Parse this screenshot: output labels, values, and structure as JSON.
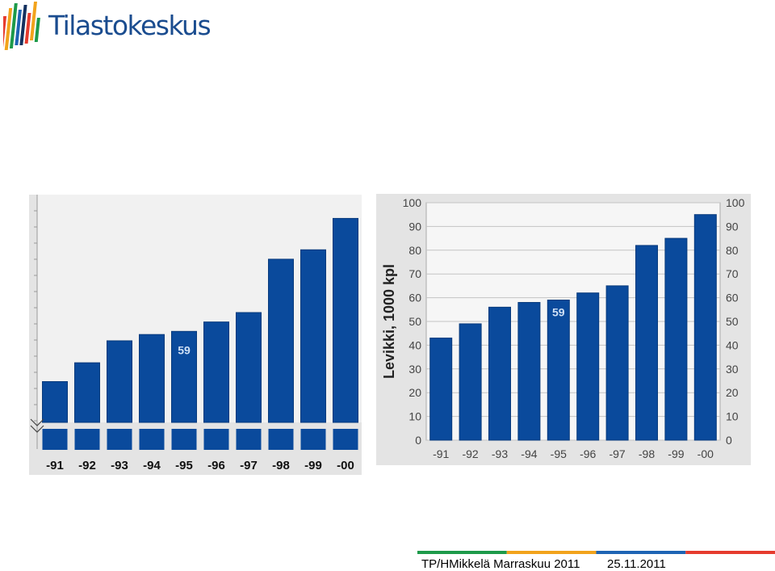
{
  "header": {
    "logo_text": "Tilastokeskus",
    "logo_colors": [
      "#e63b2e",
      "#f2a31c",
      "#1d9a4a",
      "#1e64b4",
      "#14315f"
    ]
  },
  "chart_data": [
    {
      "type": "bar",
      "categories": [
        "-91",
        "-92",
        "-93",
        "-94",
        "-95",
        "-96",
        "-97",
        "-98",
        "-99",
        "-00"
      ],
      "values": [
        43,
        49,
        56,
        58,
        59,
        62,
        65,
        82,
        85,
        95
      ],
      "annotations": [
        {
          "category": "-95",
          "text": "59"
        }
      ],
      "axis_break": true,
      "ylim": [
        30,
        100
      ],
      "grid": false,
      "bar_color": "#0a4a9c"
    },
    {
      "type": "bar",
      "categories": [
        "-91",
        "-92",
        "-93",
        "-94",
        "-95",
        "-96",
        "-97",
        "-98",
        "-99",
        "-00"
      ],
      "values": [
        43,
        49,
        56,
        58,
        59,
        62,
        65,
        82,
        85,
        95
      ],
      "annotations": [
        {
          "category": "-95",
          "text": "59"
        }
      ],
      "ylabel": "Levikki, 1000 kpl",
      "ylim": [
        0,
        100
      ],
      "yticks": [
        "0",
        "10",
        "20",
        "30",
        "40",
        "50",
        "60",
        "70",
        "80",
        "90",
        "100"
      ],
      "grid": true,
      "bar_color": "#0a4a9c"
    }
  ],
  "footer": {
    "text": "TP/HMikkelä Marraskuu 2011",
    "date": "25.11.2011",
    "stripe_colors": [
      "#1d9a4a",
      "#f2a31c",
      "#1e64b4",
      "#e63b2e"
    ]
  }
}
